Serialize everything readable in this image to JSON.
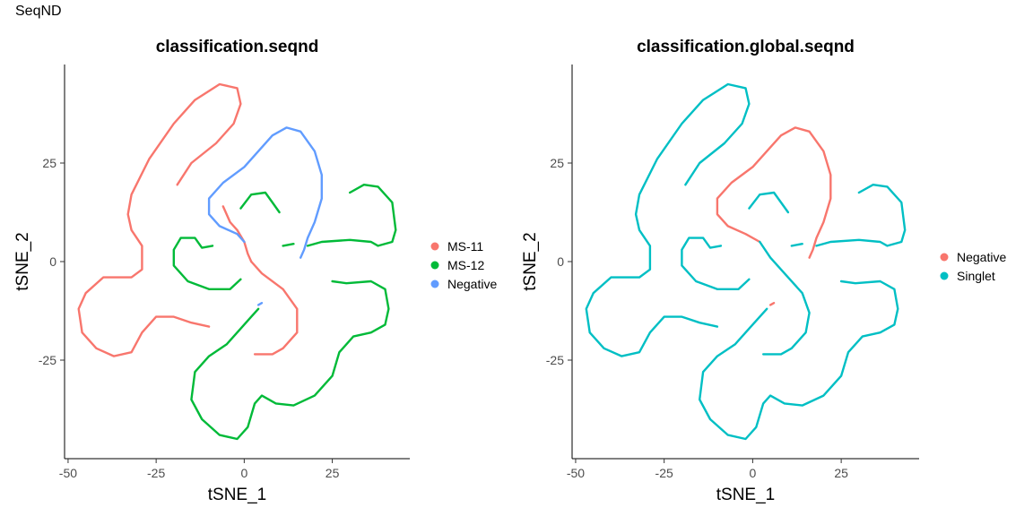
{
  "figure": {
    "supertitle": "SeqND"
  },
  "chart_data": [
    {
      "type": "scatter",
      "title": "classification.seqnd",
      "xlabel": "tSNE_1",
      "ylabel": "tSNE_2",
      "xlim": [
        -51,
        47
      ],
      "ylim": [
        -50,
        50
      ],
      "xticks": [
        -50,
        -25,
        0,
        25
      ],
      "yticks": [
        -25,
        0,
        25
      ],
      "grid": false,
      "legend": {
        "position": "right",
        "entries": [
          "MS-11",
          "MS-12",
          "Negative"
        ]
      },
      "series": [
        {
          "name": "MS-11",
          "color": "#F8766D",
          "paths": [
            [
              [
                -19,
                19.5
              ],
              [
                -15,
                25
              ],
              [
                -8,
                30
              ],
              [
                -3,
                35
              ],
              [
                -1,
                40
              ],
              [
                -2,
                44
              ],
              [
                -7,
                45
              ],
              [
                -14,
                41
              ],
              [
                -20,
                35
              ],
              [
                -27,
                26
              ],
              [
                -32,
                17
              ],
              [
                -33,
                12
              ],
              [
                -32,
                8
              ],
              [
                -29,
                4
              ],
              [
                -29,
                -2
              ],
              [
                -32,
                -4
              ],
              [
                -40,
                -4
              ],
              [
                -45,
                -8
              ],
              [
                -47,
                -12
              ],
              [
                -46,
                -18
              ],
              [
                -42,
                -22
              ],
              [
                -37,
                -24
              ],
              [
                -32,
                -23
              ],
              [
                -29,
                -18
              ],
              [
                -25,
                -14
              ],
              [
                -20,
                -14
              ],
              [
                -15,
                -15.5
              ],
              [
                -10,
                -16.5
              ]
            ],
            [
              [
                2,
                0
              ],
              [
                5,
                -3
              ],
              [
                11,
                -7
              ],
              [
                15,
                -12
              ],
              [
                15,
                -18
              ],
              [
                11,
                -22
              ],
              [
                8,
                -23.5
              ],
              [
                3,
                -23.5
              ]
            ],
            [
              [
                -6,
                14
              ],
              [
                -4,
                10
              ],
              [
                -2,
                8
              ],
              [
                0,
                5
              ],
              [
                1,
                2
              ],
              [
                2,
                0
              ]
            ]
          ]
        },
        {
          "name": "MS-12",
          "color": "#00BA38",
          "paths": [
            [
              [
                -1,
                13.5
              ],
              [
                2,
                17
              ],
              [
                6,
                17.5
              ],
              [
                8,
                15
              ],
              [
                10,
                12.5
              ]
            ],
            [
              [
                -9,
                4
              ],
              [
                -12,
                3.5
              ],
              [
                -14,
                6
              ],
              [
                -18,
                6
              ],
              [
                -20,
                3
              ],
              [
                -20,
                -1
              ],
              [
                -16,
                -5
              ],
              [
                -10,
                -7
              ],
              [
                -4,
                -7
              ],
              [
                -1,
                -4.5
              ]
            ],
            [
              [
                11,
                4
              ],
              [
                14,
                4.5
              ]
            ],
            [
              [
                18,
                4
              ],
              [
                22,
                5
              ],
              [
                30,
                5.5
              ],
              [
                36,
                5
              ],
              [
                38,
                4
              ],
              [
                42,
                5
              ],
              [
                43,
                8
              ],
              [
                42,
                15
              ],
              [
                38,
                19
              ],
              [
                34,
                19.5
              ],
              [
                30,
                17.5
              ]
            ],
            [
              [
                25,
                -5
              ],
              [
                29,
                -5.5
              ],
              [
                36,
                -5
              ],
              [
                40,
                -7
              ],
              [
                41,
                -12
              ],
              [
                40,
                -16
              ],
              [
                36,
                -18
              ],
              [
                31,
                -19
              ],
              [
                27,
                -23
              ],
              [
                25,
                -29
              ],
              [
                20,
                -34
              ],
              [
                14,
                -36.5
              ],
              [
                9,
                -36
              ],
              [
                5,
                -34
              ],
              [
                3,
                -36
              ],
              [
                1,
                -42
              ],
              [
                -2,
                -45
              ],
              [
                -7,
                -44
              ],
              [
                -12,
                -40
              ],
              [
                -15,
                -35
              ],
              [
                -14,
                -28
              ],
              [
                -10,
                -24
              ],
              [
                -5,
                -21
              ],
              [
                -1,
                -17
              ],
              [
                2,
                -14
              ],
              [
                4,
                -12
              ]
            ]
          ]
        },
        {
          "name": "Negative",
          "color": "#619CFF",
          "paths": [
            [
              [
                0,
                5
              ],
              [
                -2,
                7
              ],
              [
                -7,
                9
              ],
              [
                -10,
                12
              ],
              [
                -10,
                16
              ],
              [
                -6,
                20
              ],
              [
                0,
                24
              ],
              [
                5,
                29
              ],
              [
                8,
                32
              ],
              [
                12,
                34
              ],
              [
                16,
                33
              ],
              [
                20,
                28
              ],
              [
                22,
                22
              ],
              [
                22,
                16
              ],
              [
                20,
                10
              ],
              [
                18,
                6
              ],
              [
                17,
                3
              ],
              [
                16,
                1
              ]
            ],
            [
              [
                4,
                -11
              ],
              [
                5,
                -10.5
              ]
            ]
          ]
        }
      ]
    },
    {
      "type": "scatter",
      "title": "classification.global.seqnd",
      "xlabel": "tSNE_1",
      "ylabel": "tSNE_2",
      "xlim": [
        -51,
        47
      ],
      "ylim": [
        -50,
        50
      ],
      "xticks": [
        -50,
        -25,
        0,
        25
      ],
      "yticks": [
        -25,
        0,
        25
      ],
      "grid": false,
      "legend": {
        "position": "right",
        "entries": [
          "Negative",
          "Singlet"
        ]
      },
      "series": [
        {
          "name": "Negative",
          "color": "#F8766D",
          "paths": [
            [
              [
                2,
                5
              ],
              [
                -2,
                7
              ],
              [
                -7,
                9
              ],
              [
                -10,
                12
              ],
              [
                -10,
                16
              ],
              [
                -6,
                20
              ],
              [
                0,
                24
              ],
              [
                5,
                29
              ],
              [
                8,
                32
              ],
              [
                12,
                34
              ],
              [
                16,
                33
              ],
              [
                20,
                28
              ],
              [
                22,
                22
              ],
              [
                22,
                16
              ],
              [
                20,
                10
              ],
              [
                18,
                6
              ],
              [
                17,
                3
              ],
              [
                16,
                1
              ]
            ],
            [
              [
                5,
                -11
              ],
              [
                6,
                -10.5
              ]
            ]
          ]
        },
        {
          "name": "Singlet",
          "color": "#00BFC4",
          "paths": [
            [
              [
                -19,
                19.5
              ],
              [
                -15,
                25
              ],
              [
                -8,
                30
              ],
              [
                -3,
                35
              ],
              [
                -1,
                40
              ],
              [
                -2,
                44
              ],
              [
                -7,
                45
              ],
              [
                -14,
                41
              ],
              [
                -20,
                35
              ],
              [
                -27,
                26
              ],
              [
                -32,
                17
              ],
              [
                -33,
                12
              ],
              [
                -32,
                8
              ],
              [
                -29,
                4
              ],
              [
                -29,
                -2
              ],
              [
                -32,
                -4
              ],
              [
                -40,
                -4
              ],
              [
                -45,
                -8
              ],
              [
                -47,
                -12
              ],
              [
                -46,
                -18
              ],
              [
                -42,
                -22
              ],
              [
                -37,
                -24
              ],
              [
                -32,
                -23
              ],
              [
                -29,
                -18
              ],
              [
                -25,
                -14
              ],
              [
                -20,
                -14
              ],
              [
                -15,
                -15.5
              ],
              [
                -10,
                -16.5
              ]
            ],
            [
              [
                2,
                5
              ],
              [
                5,
                1
              ],
              [
                9,
                -3
              ],
              [
                14,
                -8
              ],
              [
                16,
                -13
              ],
              [
                15,
                -18
              ],
              [
                11,
                -22
              ],
              [
                8,
                -23.5
              ],
              [
                3,
                -23.5
              ]
            ],
            [
              [
                -1,
                13.5
              ],
              [
                2,
                17
              ],
              [
                6,
                17.5
              ],
              [
                8,
                15
              ],
              [
                10,
                12.5
              ]
            ],
            [
              [
                -9,
                4
              ],
              [
                -12,
                3.5
              ],
              [
                -14,
                6
              ],
              [
                -18,
                6
              ],
              [
                -20,
                3
              ],
              [
                -20,
                -1
              ],
              [
                -16,
                -5
              ],
              [
                -10,
                -7
              ],
              [
                -4,
                -7
              ],
              [
                -1,
                -4.5
              ]
            ],
            [
              [
                11,
                4
              ],
              [
                14,
                4.5
              ]
            ],
            [
              [
                18,
                4
              ],
              [
                22,
                5
              ],
              [
                30,
                5.5
              ],
              [
                36,
                5
              ],
              [
                38,
                4
              ],
              [
                42,
                5
              ],
              [
                43,
                8
              ],
              [
                42,
                15
              ],
              [
                38,
                19
              ],
              [
                34,
                19.5
              ],
              [
                30,
                17.5
              ]
            ],
            [
              [
                25,
                -5
              ],
              [
                29,
                -5.5
              ],
              [
                36,
                -5
              ],
              [
                40,
                -7
              ],
              [
                41,
                -12
              ],
              [
                40,
                -16
              ],
              [
                36,
                -18
              ],
              [
                31,
                -19
              ],
              [
                27,
                -23
              ],
              [
                25,
                -29
              ],
              [
                20,
                -34
              ],
              [
                14,
                -36.5
              ],
              [
                9,
                -36
              ],
              [
                5,
                -34
              ],
              [
                3,
                -36
              ],
              [
                1,
                -42
              ],
              [
                -2,
                -45
              ],
              [
                -7,
                -44
              ],
              [
                -12,
                -40
              ],
              [
                -15,
                -35
              ],
              [
                -14,
                -28
              ],
              [
                -10,
                -24
              ],
              [
                -5,
                -21
              ],
              [
                -1,
                -17
              ],
              [
                2,
                -14
              ],
              [
                4,
                -12
              ]
            ]
          ]
        }
      ]
    }
  ]
}
